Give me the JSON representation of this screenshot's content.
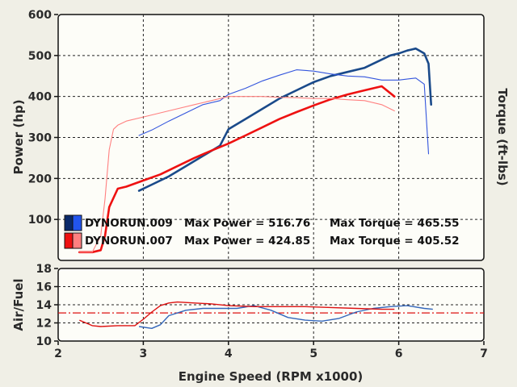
{
  "chart_data": [
    {
      "type": "line",
      "panel": "power-torque",
      "xlabel": "Engine Speed (RPM x1000)",
      "ylabel": "Power (hp)",
      "y2label": "Torque (ft-lbs)",
      "xlim": [
        2,
        7
      ],
      "ylim": [
        0,
        600
      ],
      "xticks": [
        "2",
        "3",
        "4",
        "5",
        "6",
        "7"
      ],
      "yticks": [
        "100",
        "200",
        "300",
        "400",
        "500",
        "600"
      ],
      "grid": true,
      "legend_position": "bottom-left",
      "series": [
        {
          "name": "DYNORUN.009",
          "measure": "power",
          "color": "#1a4a8a",
          "x": [
            2.95,
            3.1,
            3.3,
            3.5,
            3.7,
            3.9,
            4.0,
            4.2,
            4.4,
            4.6,
            4.8,
            5.0,
            5.2,
            5.4,
            5.6,
            5.8,
            5.9,
            6.0,
            6.1,
            6.2,
            6.3,
            6.35,
            6.38
          ],
          "y": [
            170,
            185,
            205,
            230,
            255,
            280,
            320,
            345,
            370,
            395,
            415,
            435,
            450,
            460,
            470,
            490,
            500,
            505,
            512,
            517,
            505,
            480,
            380
          ]
        },
        {
          "name": "DYNORUN.009",
          "measure": "torque",
          "color": "#3355dd",
          "x": [
            2.95,
            3.1,
            3.3,
            3.5,
            3.7,
            3.9,
            4.0,
            4.2,
            4.4,
            4.6,
            4.8,
            5.0,
            5.2,
            5.4,
            5.6,
            5.8,
            6.0,
            6.2,
            6.3,
            6.35
          ],
          "y": [
            305,
            318,
            340,
            360,
            380,
            390,
            405,
            420,
            438,
            452,
            465,
            462,
            455,
            450,
            448,
            440,
            440,
            445,
            430,
            260
          ]
        },
        {
          "name": "DYNORUN.007",
          "measure": "power",
          "color": "#ee1111",
          "x": [
            2.25,
            2.4,
            2.5,
            2.55,
            2.6,
            2.7,
            2.8,
            3.0,
            3.2,
            3.4,
            3.6,
            3.8,
            4.0,
            4.2,
            4.4,
            4.6,
            4.8,
            5.0,
            5.2,
            5.4,
            5.6,
            5.8,
            5.95
          ],
          "y": [
            20,
            20,
            25,
            60,
            130,
            175,
            180,
            195,
            210,
            230,
            250,
            268,
            285,
            305,
            325,
            345,
            362,
            378,
            393,
            405,
            415,
            425,
            400
          ]
        },
        {
          "name": "DYNORUN.007",
          "measure": "torque",
          "color": "#ff8080",
          "x": [
            2.25,
            2.4,
            2.5,
            2.55,
            2.6,
            2.65,
            2.7,
            2.8,
            3.0,
            3.2,
            3.4,
            3.6,
            3.8,
            4.0,
            4.2,
            4.4,
            4.6,
            4.8,
            5.0,
            5.2,
            5.4,
            5.6,
            5.8,
            5.95
          ],
          "y": [
            20,
            20,
            60,
            150,
            270,
            320,
            330,
            340,
            350,
            360,
            370,
            380,
            390,
            400,
            400,
            400,
            398,
            397,
            395,
            395,
            392,
            390,
            380,
            365
          ]
        }
      ],
      "legend": [
        {
          "run": "DYNORUN.009",
          "max_power": "Max Power = 516.76",
          "max_torque": "Max Torque = 465.55",
          "power_color": "#0a2a6a",
          "torque_color": "#2255ee"
        },
        {
          "run": "DYNORUN.007",
          "max_power": "Max Power = 424.85",
          "max_torque": "Max Torque = 405.52",
          "power_color": "#ee1111",
          "torque_color": "#ff8080"
        }
      ]
    },
    {
      "type": "line",
      "panel": "air-fuel",
      "xlabel": "Engine Speed (RPM x1000)",
      "ylabel": "Air/Fuel",
      "xlim": [
        2,
        7
      ],
      "ylim": [
        10,
        18
      ],
      "xticks": [
        "2",
        "3",
        "4",
        "5",
        "6",
        "7"
      ],
      "yticks": [
        "10",
        "12",
        "14",
        "16",
        "18"
      ],
      "grid": true,
      "reference_line": {
        "y": 13.1,
        "color": "#dd1111",
        "style": "dash-dot"
      },
      "series": [
        {
          "name": "DYNORUN.009",
          "color": "#3366bb",
          "x": [
            2.95,
            3.1,
            3.2,
            3.3,
            3.5,
            3.7,
            3.9,
            4.1,
            4.3,
            4.5,
            4.7,
            4.9,
            5.1,
            5.3,
            5.5,
            5.7,
            5.9,
            6.1,
            6.3,
            6.4
          ],
          "y": [
            11.6,
            11.4,
            11.8,
            12.8,
            13.4,
            13.6,
            13.6,
            13.6,
            13.9,
            13.4,
            12.6,
            12.3,
            12.2,
            12.5,
            13.2,
            13.6,
            13.8,
            13.9,
            13.6,
            13.5
          ]
        },
        {
          "name": "DYNORUN.007",
          "color": "#dd1111",
          "x": [
            2.25,
            2.4,
            2.5,
            2.7,
            2.9,
            3.0,
            3.1,
            3.2,
            3.3,
            3.4,
            3.6,
            3.8,
            4.0,
            4.3,
            4.6,
            4.9,
            5.2,
            5.5,
            5.8,
            5.95
          ],
          "y": [
            12.3,
            11.7,
            11.6,
            11.7,
            11.7,
            12.4,
            13.2,
            13.9,
            14.2,
            14.3,
            14.2,
            14.1,
            13.9,
            13.8,
            13.8,
            13.8,
            13.7,
            13.6,
            13.5,
            13.5
          ]
        }
      ]
    }
  ]
}
